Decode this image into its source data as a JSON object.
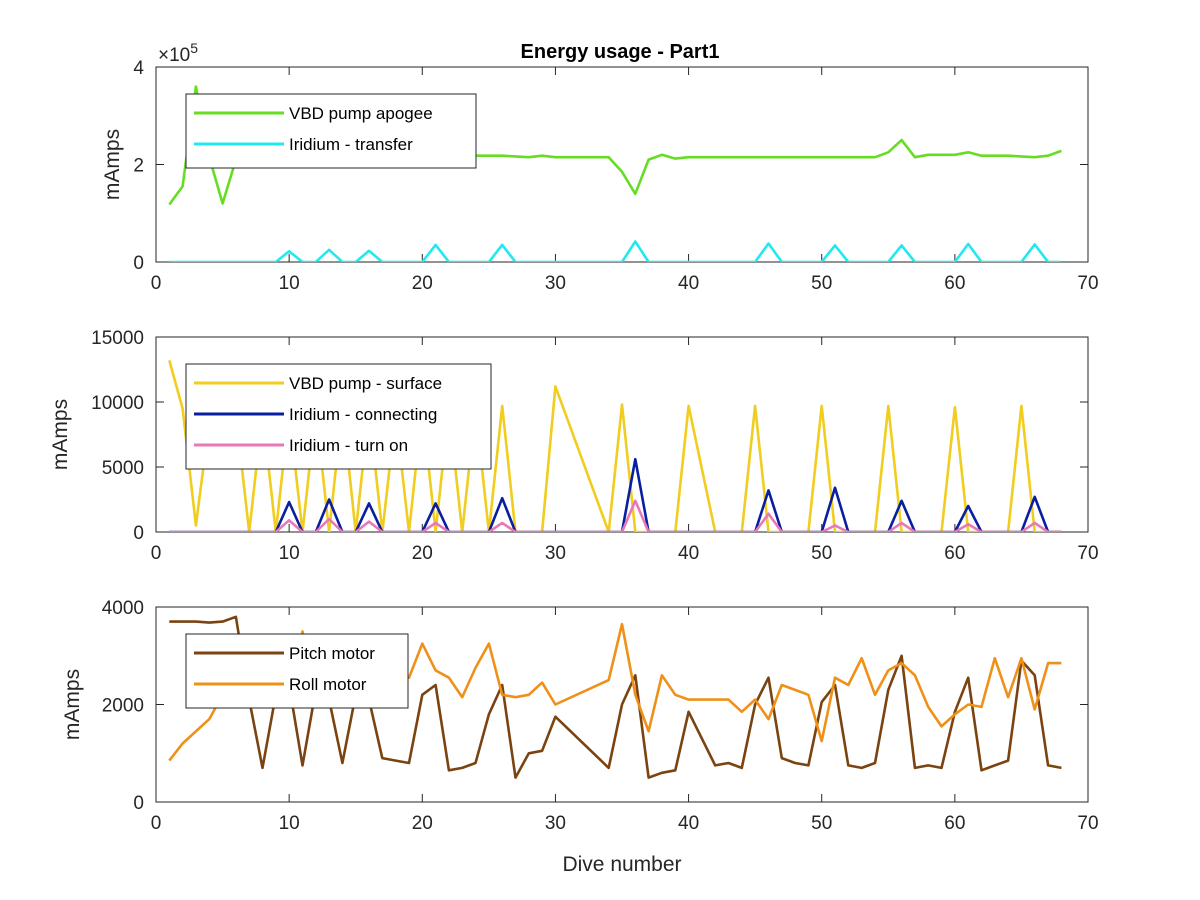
{
  "chart_data": [
    {
      "type": "line",
      "title": "Energy usage - Part1",
      "xlabel": "",
      "ylabel": "mAmps",
      "xlim": [
        0,
        70
      ],
      "ylim": [
        0,
        4
      ],
      "y_exponent_label": "×10",
      "y_exponent_power": "5",
      "x_ticks": [
        "0",
        "10",
        "20",
        "30",
        "40",
        "50",
        "60",
        "70"
      ],
      "y_ticks": [
        "0",
        "2",
        "4"
      ],
      "legend": "upper-left",
      "series": [
        {
          "name": "VBD pump apogee",
          "color": "#66dd22",
          "x": [
            1,
            2,
            3,
            4,
            5,
            6,
            7,
            8,
            9,
            10,
            12,
            14,
            16,
            18,
            20,
            22,
            24,
            26,
            28,
            29,
            30,
            32,
            34,
            35,
            36,
            37,
            38,
            39,
            40,
            42,
            44,
            46,
            48,
            50,
            52,
            54,
            55,
            56,
            57,
            58,
            60,
            61,
            62,
            64,
            66,
            67,
            68
          ],
          "values": [
            1.18,
            1.55,
            3.6,
            2.15,
            1.2,
            2.1,
            2.1,
            2.15,
            2.2,
            2.2,
            2.2,
            2.2,
            2.2,
            2.2,
            2.2,
            2.2,
            2.18,
            2.18,
            2.15,
            2.18,
            2.15,
            2.15,
            2.15,
            1.85,
            1.4,
            2.1,
            2.2,
            2.12,
            2.15,
            2.15,
            2.15,
            2.15,
            2.15,
            2.15,
            2.15,
            2.15,
            2.25,
            2.5,
            2.15,
            2.2,
            2.2,
            2.25,
            2.18,
            2.18,
            2.15,
            2.18,
            2.28
          ]
        },
        {
          "name": "Iridium - transfer",
          "color": "#22e8f0",
          "x": [
            1,
            9,
            10,
            11,
            12,
            13,
            14,
            15,
            16,
            17,
            20,
            21,
            22,
            25,
            26,
            27,
            35,
            36,
            37,
            45,
            46,
            47,
            50,
            51,
            52,
            55,
            56,
            57,
            60,
            61,
            62,
            65,
            66,
            67,
            68
          ],
          "values": [
            0,
            0,
            0.22,
            0,
            0,
            0.25,
            0,
            0,
            0.23,
            0,
            0,
            0.35,
            0,
            0,
            0.35,
            0,
            0,
            0.42,
            0,
            0,
            0.38,
            0,
            0,
            0.34,
            0,
            0,
            0.34,
            0,
            0,
            0.37,
            0,
            0,
            0.36,
            0,
            0
          ]
        }
      ]
    },
    {
      "type": "line",
      "title": "",
      "xlabel": "",
      "ylabel": "mAmps",
      "xlim": [
        0,
        70
      ],
      "ylim": [
        0,
        15000
      ],
      "x_ticks": [
        "0",
        "10",
        "20",
        "30",
        "40",
        "50",
        "60",
        "70"
      ],
      "y_ticks": [
        "0",
        "5000",
        "10000",
        "15000"
      ],
      "legend": "upper-left",
      "series": [
        {
          "name": "VBD pump - surface",
          "color": "#f0cd1e",
          "x": [
            1,
            2,
            3,
            4,
            5,
            6,
            7,
            8,
            9,
            10,
            11,
            12,
            13,
            14,
            15,
            16,
            17,
            18,
            19,
            20,
            21,
            22,
            23,
            24,
            25,
            26,
            27,
            28,
            29,
            30,
            34,
            35,
            36,
            37,
            39,
            40,
            42,
            44,
            45,
            46,
            49,
            50,
            51,
            54,
            55,
            56,
            59,
            60,
            61,
            64,
            65,
            66,
            67,
            68
          ],
          "values": [
            13200,
            9500,
            500,
            8500,
            6000,
            9000,
            0,
            9200,
            0,
            9200,
            0,
            9400,
            0,
            9600,
            0,
            9400,
            0,
            9000,
            0,
            9600,
            0,
            9500,
            0,
            9500,
            0,
            9700,
            0,
            0,
            0,
            11200,
            0,
            9800,
            0,
            0,
            0,
            9700,
            0,
            0,
            9700,
            0,
            0,
            9700,
            0,
            0,
            9700,
            0,
            0,
            9600,
            0,
            0,
            9700,
            0,
            0,
            0
          ]
        },
        {
          "name": "Iridium - connecting",
          "color": "#0a1ea0",
          "x": [
            1,
            9,
            10,
            11,
            12,
            13,
            14,
            15,
            16,
            17,
            20,
            21,
            22,
            25,
            26,
            27,
            35,
            36,
            37,
            45,
            46,
            47,
            50,
            51,
            52,
            55,
            56,
            57,
            60,
            61,
            62,
            65,
            66,
            67,
            68
          ],
          "values": [
            0,
            0,
            2300,
            0,
            0,
            2500,
            0,
            0,
            2200,
            0,
            0,
            2200,
            0,
            0,
            2600,
            0,
            0,
            5600,
            0,
            0,
            3200,
            0,
            0,
            3400,
            0,
            0,
            2400,
            0,
            0,
            2000,
            0,
            0,
            2700,
            0,
            0
          ]
        },
        {
          "name": "Iridium - turn on",
          "color": "#e878b8",
          "x": [
            1,
            9,
            10,
            11,
            12,
            13,
            14,
            15,
            16,
            17,
            20,
            21,
            22,
            25,
            26,
            27,
            35,
            36,
            37,
            45,
            46,
            47,
            50,
            51,
            52,
            55,
            56,
            57,
            60,
            61,
            62,
            65,
            66,
            67,
            68
          ],
          "values": [
            0,
            0,
            900,
            0,
            0,
            1000,
            0,
            0,
            800,
            0,
            0,
            700,
            0,
            0,
            700,
            0,
            0,
            2400,
            0,
            0,
            1400,
            0,
            0,
            500,
            0,
            0,
            700,
            0,
            0,
            600,
            0,
            0,
            700,
            0,
            0
          ]
        }
      ]
    },
    {
      "type": "line",
      "title": "",
      "xlabel": "Dive number",
      "ylabel": "mAmps",
      "xlim": [
        0,
        70
      ],
      "ylim": [
        0,
        4000
      ],
      "x_ticks": [
        "0",
        "10",
        "20",
        "30",
        "40",
        "50",
        "60",
        "70"
      ],
      "y_ticks": [
        "0",
        "2000",
        "4000"
      ],
      "legend": "upper-left",
      "series": [
        {
          "name": "Pitch motor",
          "color": "#7a4310",
          "x": [
            1,
            2,
            3,
            4,
            5,
            6,
            7,
            8,
            9,
            10,
            11,
            12,
            13,
            14,
            15,
            16,
            17,
            18,
            19,
            20,
            21,
            22,
            23,
            24,
            25,
            26,
            27,
            28,
            29,
            30,
            34,
            35,
            36,
            37,
            38,
            39,
            40,
            42,
            43,
            44,
            45,
            46,
            47,
            48,
            49,
            50,
            51,
            52,
            53,
            54,
            55,
            56,
            57,
            58,
            59,
            60,
            61,
            62,
            63,
            64,
            65,
            66,
            67,
            68
          ],
          "values": [
            3700,
            3700,
            3700,
            3680,
            3700,
            3800,
            2100,
            700,
            2200,
            2400,
            750,
            2300,
            2100,
            800,
            2200,
            2100,
            900,
            850,
            800,
            2200,
            2400,
            650,
            700,
            800,
            1800,
            2400,
            500,
            1000,
            1050,
            1750,
            700,
            2000,
            2600,
            500,
            600,
            650,
            1850,
            750,
            800,
            700,
            2000,
            2550,
            900,
            800,
            750,
            2050,
            2400,
            750,
            700,
            800,
            2300,
            3000,
            700,
            750,
            700,
            1850,
            2550,
            650,
            750,
            850,
            2900,
            2600,
            750,
            700
          ]
        },
        {
          "name": "Roll motor",
          "color": "#ef9019",
          "x": [
            1,
            2,
            3,
            4,
            5,
            6,
            7,
            8,
            9,
            10,
            11,
            12,
            13,
            14,
            15,
            16,
            17,
            18,
            19,
            20,
            21,
            22,
            23,
            24,
            25,
            26,
            27,
            28,
            29,
            30,
            34,
            35,
            36,
            37,
            38,
            39,
            40,
            42,
            43,
            44,
            45,
            46,
            47,
            48,
            49,
            50,
            51,
            52,
            53,
            54,
            55,
            56,
            57,
            58,
            59,
            60,
            61,
            62,
            63,
            64,
            65,
            66,
            67,
            68
          ],
          "values": [
            850,
            1200,
            1450,
            1700,
            2200,
            2500,
            2300,
            2400,
            2200,
            2100,
            3500,
            2200,
            2700,
            2400,
            2900,
            2100,
            2650,
            2700,
            2550,
            3250,
            2700,
            2550,
            2150,
            2750,
            3250,
            2200,
            2150,
            2200,
            2450,
            2000,
            2500,
            3650,
            2200,
            1450,
            2600,
            2200,
            2100,
            2100,
            2100,
            1850,
            2100,
            1700,
            2400,
            2300,
            2200,
            1250,
            2550,
            2400,
            2950,
            2200,
            2700,
            2850,
            2600,
            1950,
            1550,
            1800,
            2000,
            1950,
            2950,
            2150,
            2950,
            1900,
            2850,
            2850
          ]
        }
      ]
    }
  ]
}
